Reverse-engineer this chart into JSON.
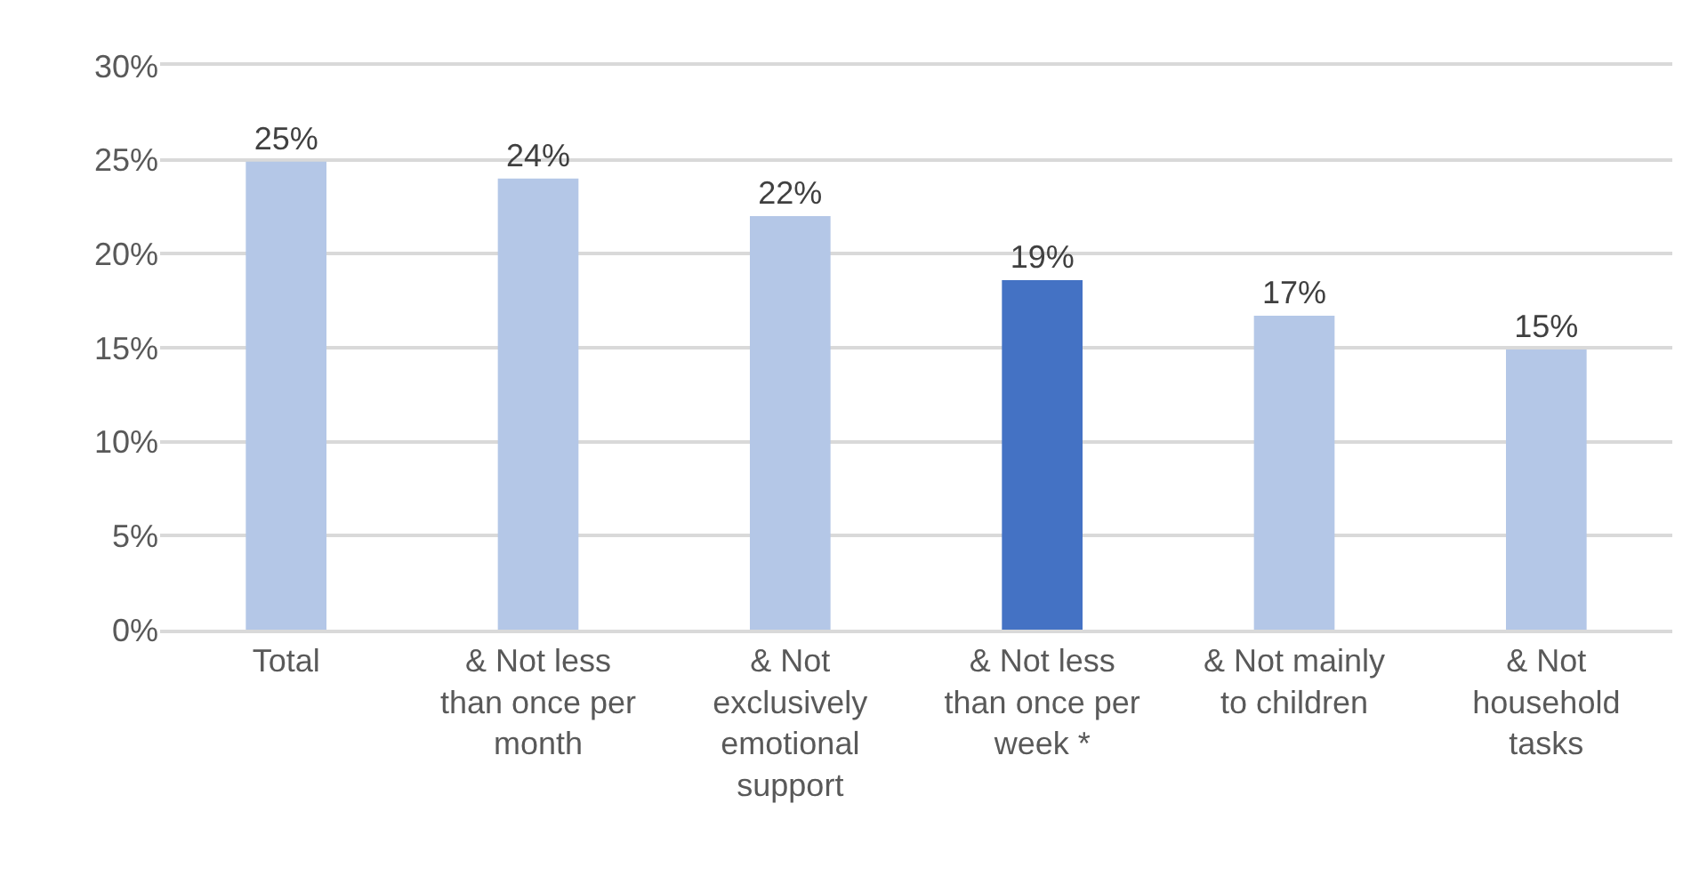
{
  "chart_data": {
    "type": "bar",
    "categories": [
      "Total",
      "& Not less than once per month",
      "& Not exclusively emotional support",
      "& Not less than once per week *",
      "& Not mainly to children",
      "& Not household tasks"
    ],
    "values": [
      24.9,
      24.0,
      22.0,
      18.6,
      16.7,
      14.9
    ],
    "colors": [
      "#b4c7e7",
      "#b4c7e7",
      "#b4c7e7",
      "#4472c4",
      "#b4c7e7",
      "#b4c7e7"
    ],
    "value_labels": [
      "25%",
      "24%",
      "22%",
      "19%",
      "17%",
      "15%"
    ],
    "ylim": [
      0,
      30
    ],
    "yticks": [
      {
        "value": 0,
        "label": "0%"
      },
      {
        "value": 5,
        "label": "5%"
      },
      {
        "value": 10,
        "label": "10%"
      },
      {
        "value": 15,
        "label": "15%"
      },
      {
        "value": 20,
        "label": "20%"
      },
      {
        "value": 25,
        "label": "25%"
      },
      {
        "value": 30,
        "label": "30%"
      }
    ],
    "grid": "y"
  }
}
